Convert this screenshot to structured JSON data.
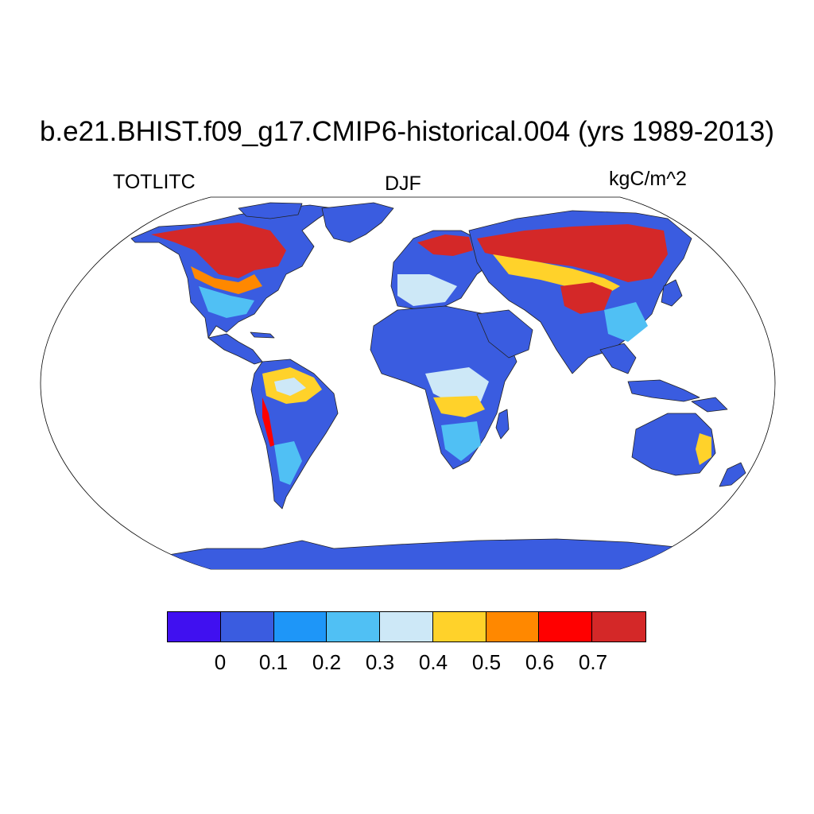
{
  "title": "b.e21.BHIST.f09_g17.CMIP6-historical.004 (yrs 1989-2013)",
  "variable": "TOTLITC",
  "season": "DJF",
  "units": "kgC/m^2",
  "colorbar": {
    "colors": [
      "#4010f0",
      "#3a5ce0",
      "#1e96f8",
      "#50c0f4",
      "#cde8f7",
      "#ffd22a",
      "#ff8800",
      "#ff0000",
      "#d42828"
    ],
    "tick_labels": [
      "0",
      "0.1",
      "0.2",
      "0.3",
      "0.4",
      "0.5",
      "0.6",
      "0.7"
    ]
  },
  "ocean_color": "#ffffff"
}
